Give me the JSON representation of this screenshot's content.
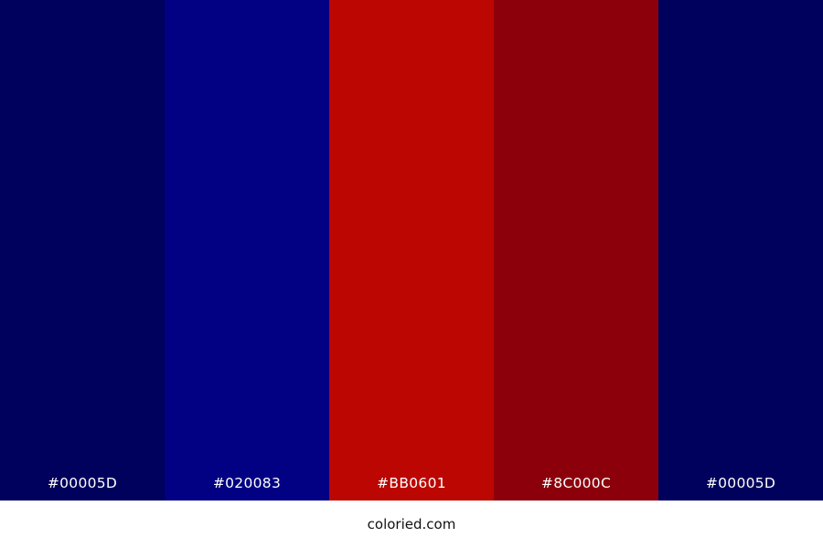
{
  "palette": {
    "swatches": [
      {
        "hex": "#00005D",
        "label": "#00005D"
      },
      {
        "hex": "#020083",
        "label": "#020083"
      },
      {
        "hex": "#BB0601",
        "label": "#BB0601"
      },
      {
        "hex": "#8C000C",
        "label": "#8C000C"
      },
      {
        "hex": "#00005D",
        "label": "#00005D"
      }
    ]
  },
  "footer": {
    "site_label": "coloried.com"
  },
  "colors": {
    "label_text": "#FFFFFF",
    "footer_bg": "#FFFFFF",
    "footer_text": "#111111"
  }
}
